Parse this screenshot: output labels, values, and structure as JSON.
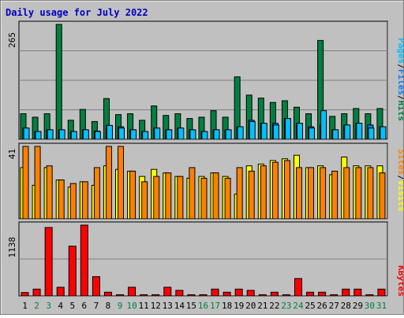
{
  "title": "Daily usage for July 2022",
  "colors": {
    "background": "#c0c0c0",
    "title": "#0000c0",
    "hits": "#008040",
    "files": "#0080ff",
    "pages": "#00c0ff",
    "visits": "#ffff00",
    "sites": "#ff8000",
    "kbytes": "#ff0000",
    "weekend_day": "#008040",
    "weekday": "#000000"
  },
  "chart_data": [
    {
      "type": "bar",
      "panel": "hits-files-pages",
      "ymax_label": "265",
      "legend": [
        {
          "text": "Pages",
          "color": "#00c0ff"
        },
        {
          "text": "Files",
          "color": "#0080ff"
        },
        {
          "text": "Hits",
          "color": "#008040"
        }
      ],
      "series": [
        {
          "name": "Hits",
          "values": [
            59,
            51,
            59,
            265,
            44,
            69,
            41,
            94,
            57,
            59,
            44,
            77,
            55,
            59,
            48,
            51,
            66,
            51,
            144,
            102,
            95,
            85,
            89,
            74,
            59,
            228,
            53,
            59,
            71,
            59,
            71
          ]
        },
        {
          "name": "Files",
          "values": [
            26,
            18,
            22,
            22,
            18,
            22,
            19,
            32,
            29,
            22,
            18,
            26,
            22,
            26,
            22,
            18,
            22,
            22,
            29,
            44,
            37,
            37,
            48,
            37,
            29,
            33,
            22,
            33,
            37,
            33,
            29
          ]
        },
        {
          "name": "Pages",
          "values": [
            26,
            18,
            22,
            22,
            18,
            22,
            18,
            32,
            26,
            22,
            18,
            26,
            22,
            26,
            22,
            18,
            22,
            22,
            29,
            41,
            37,
            33,
            48,
            37,
            26,
            66,
            22,
            33,
            37,
            26,
            29
          ]
        }
      ]
    },
    {
      "type": "bar",
      "panel": "visits-sites",
      "ymax_label": "41",
      "legend": [
        {
          "text": "Sites",
          "color": "#ff8000"
        },
        {
          "text": "Visits",
          "color": "#ffff00"
        }
      ],
      "series": [
        {
          "name": "Visits",
          "values": [
            29,
            19,
            29,
            22,
            18,
            21,
            19,
            30,
            28,
            27,
            24,
            28,
            26,
            24,
            23,
            24,
            26,
            24,
            14,
            30,
            31,
            33,
            34,
            36,
            29,
            30,
            25,
            35,
            30,
            30,
            30
          ]
        },
        {
          "name": "Sites",
          "values": [
            41,
            41,
            30,
            22,
            20,
            21,
            29,
            41,
            41,
            27,
            21,
            24,
            26,
            24,
            29,
            23,
            26,
            23,
            29,
            27,
            30,
            32,
            33,
            29,
            29,
            29,
            27,
            29,
            29,
            29,
            26
          ]
        }
      ]
    },
    {
      "type": "bar",
      "panel": "kbytes",
      "ymax_label": "1138",
      "legend": [
        {
          "text": "KBytes",
          "color": "#ff0000"
        }
      ],
      "series": [
        {
          "name": "KBytes",
          "values": [
            55,
            110,
            1100,
            140,
            800,
            1138,
            310,
            60,
            20,
            140,
            20,
            20,
            140,
            90,
            20,
            20,
            110,
            60,
            110,
            90,
            20,
            60,
            20,
            280,
            60,
            60,
            20,
            110,
            110,
            20,
            110
          ]
        }
      ]
    }
  ],
  "days": [
    {
      "label": "1",
      "weekend": false
    },
    {
      "label": "2",
      "weekend": true
    },
    {
      "label": "3",
      "weekend": true
    },
    {
      "label": "4",
      "weekend": false
    },
    {
      "label": "5",
      "weekend": false
    },
    {
      "label": "6",
      "weekend": false
    },
    {
      "label": "7",
      "weekend": false
    },
    {
      "label": "8",
      "weekend": false
    },
    {
      "label": "9",
      "weekend": true
    },
    {
      "label": "10",
      "weekend": true
    },
    {
      "label": "11",
      "weekend": false
    },
    {
      "label": "12",
      "weekend": false
    },
    {
      "label": "13",
      "weekend": false
    },
    {
      "label": "14",
      "weekend": false
    },
    {
      "label": "15",
      "weekend": false
    },
    {
      "label": "16",
      "weekend": true
    },
    {
      "label": "17",
      "weekend": true
    },
    {
      "label": "18",
      "weekend": false
    },
    {
      "label": "19",
      "weekend": false
    },
    {
      "label": "20",
      "weekend": false
    },
    {
      "label": "21",
      "weekend": false
    },
    {
      "label": "22",
      "weekend": false
    },
    {
      "label": "23",
      "weekend": true
    },
    {
      "label": "24",
      "weekend": true
    },
    {
      "label": "25",
      "weekend": false
    },
    {
      "label": "26",
      "weekend": false
    },
    {
      "label": "27",
      "weekend": false
    },
    {
      "label": "28",
      "weekend": false
    },
    {
      "label": "29",
      "weekend": false
    },
    {
      "label": "30",
      "weekend": true
    },
    {
      "label": "31",
      "weekend": true
    }
  ]
}
